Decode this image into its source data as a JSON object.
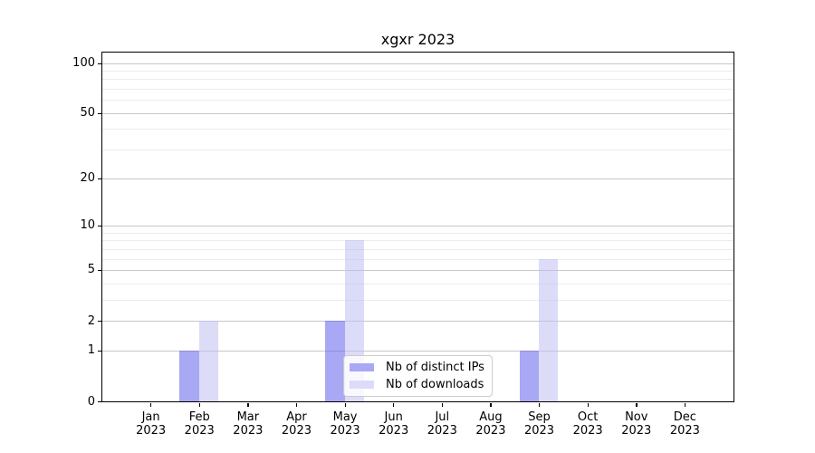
{
  "title": "xgxr 2023",
  "chart_data": {
    "type": "bar",
    "title": "xgxr 2023",
    "categories": [
      "Jan",
      "Feb",
      "Mar",
      "Apr",
      "May",
      "Jun",
      "Jul",
      "Aug",
      "Sep",
      "Oct",
      "Nov",
      "Dec"
    ],
    "category_year": "2023",
    "series": [
      {
        "name": "Nb of distinct IPs",
        "fill": "rgba(97,97,237,0.55)",
        "legend_color": "#a8a8f5",
        "values": [
          0,
          1,
          0,
          0,
          2,
          0,
          0,
          0,
          1,
          0,
          0,
          0
        ]
      },
      {
        "name": "Nb of downloads",
        "fill": "rgba(192,192,243,0.55)",
        "legend_color": "#dcdcf8",
        "values": [
          0,
          2,
          0,
          0,
          8,
          0,
          0,
          0,
          6,
          0,
          0,
          0
        ]
      }
    ],
    "y_axis": {
      "scale": "log1p",
      "lim": [
        0,
        100
      ],
      "major_ticks": [
        0,
        1,
        2,
        5,
        10,
        20,
        50,
        100
      ],
      "major_tick_labels": [
        "0",
        "1",
        "2",
        "5",
        "10",
        "20",
        "50",
        "100"
      ],
      "minor_gridlines": [
        3,
        4,
        6,
        7,
        8,
        9,
        30,
        40,
        60,
        70,
        80,
        90
      ]
    },
    "x_axis": {
      "slots": 13,
      "bar_width_frac": 0.4
    },
    "grid": true,
    "legend": {
      "position": "lower-center",
      "entries": [
        "Nb of distinct IPs",
        "Nb of downloads"
      ]
    }
  },
  "colors": {
    "background": "#ffffff",
    "spine": "#000000",
    "grid_major": "#c8c8c8",
    "grid_minor": "#ececec",
    "text": "#000000",
    "legend_border": "#cccccc",
    "legend_bg": "rgba(255,255,255,0.8)"
  }
}
